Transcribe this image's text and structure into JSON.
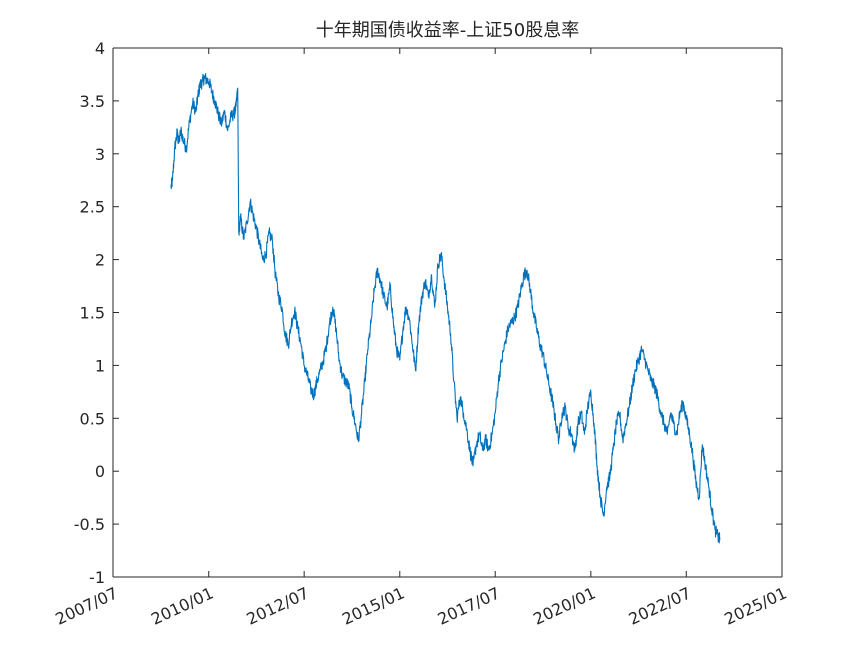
{
  "chart_data": {
    "type": "line",
    "title": "十年期国债收益率-上证50股息率",
    "xlabel": "",
    "ylabel": "",
    "xlim": [
      "2007/07",
      "2025/01"
    ],
    "ylim": [
      -1,
      4
    ],
    "x_ticks": [
      "2007/07",
      "2010/01",
      "2012/07",
      "2015/01",
      "2017/07",
      "2020/01",
      "2022/07",
      "2025/01"
    ],
    "y_ticks": [
      -1,
      -0.5,
      0,
      0.5,
      1,
      1.5,
      2,
      2.5,
      3,
      3.5,
      4
    ],
    "y_tick_labels": [
      "-1",
      "-0.5",
      "0",
      "0.5",
      "1",
      "1.5",
      "2",
      "2.5",
      "3",
      "3.5",
      "4"
    ],
    "grid": false,
    "box": true,
    "series": [
      {
        "color": "#0072BD",
        "points": [
          [
            "2009/01/05",
            2.68
          ],
          [
            "2009/01/20",
            2.75
          ],
          [
            "2009/02/10",
            3.05
          ],
          [
            "2009/03/05",
            3.2
          ],
          [
            "2009/03/20",
            3.1
          ],
          [
            "2009/04/10",
            3.22
          ],
          [
            "2009/05/05",
            3.12
          ],
          [
            "2009/06/01",
            3.05
          ],
          [
            "2009/07/01",
            3.3
          ],
          [
            "2009/08/01",
            3.48
          ],
          [
            "2009/09/01",
            3.4
          ],
          [
            "2009/09/20",
            3.55
          ],
          [
            "2009/10/10",
            3.65
          ],
          [
            "2009/11/01",
            3.68
          ],
          [
            "2009/11/20",
            3.72
          ],
          [
            "2009/12/10",
            3.7
          ],
          [
            "2010/01/05",
            3.68
          ],
          [
            "2010/02/01",
            3.58
          ],
          [
            "2010/03/01",
            3.5
          ],
          [
            "2010/04/01",
            3.38
          ],
          [
            "2010/05/01",
            3.28
          ],
          [
            "2010/06/01",
            3.4
          ],
          [
            "2010/07/01",
            3.22
          ],
          [
            "2010/08/01",
            3.35
          ],
          [
            "2010/09/01",
            3.38
          ],
          [
            "2010/09/20",
            3.45
          ],
          [
            "2010/10/05",
            3.62
          ],
          [
            "2010/10/15",
            2.25
          ],
          [
            "2010/11/01",
            2.4
          ],
          [
            "2010/12/01",
            2.2
          ],
          [
            "2011/01/01",
            2.35
          ],
          [
            "2011/02/01",
            2.55
          ],
          [
            "2011/03/01",
            2.42
          ],
          [
            "2011/04/01",
            2.3
          ],
          [
            "2011/05/01",
            2.15
          ],
          [
            "2011/06/01",
            2.0
          ],
          [
            "2011/07/01",
            2.05
          ],
          [
            "2011/08/01",
            2.25
          ],
          [
            "2011/09/01",
            2.18
          ],
          [
            "2011/10/01",
            1.85
          ],
          [
            "2011/11/01",
            1.65
          ],
          [
            "2011/12/01",
            1.55
          ],
          [
            "2012/01/01",
            1.3
          ],
          [
            "2012/02/01",
            1.2
          ],
          [
            "2012/03/01",
            1.4
          ],
          [
            "2012/04/01",
            1.52
          ],
          [
            "2012/05/01",
            1.35
          ],
          [
            "2012/06/01",
            1.2
          ],
          [
            "2012/07/01",
            1.0
          ],
          [
            "2012/08/01",
            0.9
          ],
          [
            "2012/09/01",
            0.78
          ],
          [
            "2012/10/01",
            0.72
          ],
          [
            "2012/11/01",
            0.85
          ],
          [
            "2012/12/01",
            0.95
          ],
          [
            "2013/01/01",
            1.05
          ],
          [
            "2013/02/01",
            1.2
          ],
          [
            "2013/03/01",
            1.4
          ],
          [
            "2013/04/01",
            1.55
          ],
          [
            "2013/05/01",
            1.35
          ],
          [
            "2013/06/01",
            1.05
          ],
          [
            "2013/07/01",
            0.9
          ],
          [
            "2013/08/01",
            0.85
          ],
          [
            "2013/09/01",
            0.8
          ],
          [
            "2013/10/01",
            0.6
          ],
          [
            "2013/11/01",
            0.45
          ],
          [
            "2013/12/01",
            0.28
          ],
          [
            "2014/01/01",
            0.55
          ],
          [
            "2014/02/01",
            0.85
          ],
          [
            "2014/03/01",
            1.15
          ],
          [
            "2014/04/01",
            1.4
          ],
          [
            "2014/05/01",
            1.7
          ],
          [
            "2014/06/01",
            1.9
          ],
          [
            "2014/07/01",
            1.8
          ],
          [
            "2014/08/01",
            1.65
          ],
          [
            "2014/09/01",
            1.55
          ],
          [
            "2014/10/01",
            1.75
          ],
          [
            "2014/11/01",
            1.4
          ],
          [
            "2014/12/01",
            1.15
          ],
          [
            "2015/01/01",
            1.05
          ],
          [
            "2015/02/01",
            1.35
          ],
          [
            "2015/03/01",
            1.55
          ],
          [
            "2015/04/01",
            1.45
          ],
          [
            "2015/05/01",
            1.2
          ],
          [
            "2015/06/01",
            0.95
          ],
          [
            "2015/07/01",
            1.4
          ],
          [
            "2015/08/01",
            1.65
          ],
          [
            "2015/09/01",
            1.8
          ],
          [
            "2015/10/01",
            1.65
          ],
          [
            "2015/11/01",
            1.85
          ],
          [
            "2015/12/01",
            1.55
          ],
          [
            "2016/01/01",
            1.95
          ],
          [
            "2016/02/01",
            2.05
          ],
          [
            "2016/03/01",
            1.8
          ],
          [
            "2016/04/01",
            1.55
          ],
          [
            "2016/05/01",
            1.3
          ],
          [
            "2016/06/01",
            0.85
          ],
          [
            "2016/07/01",
            0.5
          ],
          [
            "2016/08/01",
            0.7
          ],
          [
            "2016/09/01",
            0.55
          ],
          [
            "2016/10/01",
            0.4
          ],
          [
            "2016/11/01",
            0.2
          ],
          [
            "2016/12/01",
            0.05
          ],
          [
            "2017/01/01",
            0.25
          ],
          [
            "2017/02/01",
            0.35
          ],
          [
            "2017/03/01",
            0.2
          ],
          [
            "2017/04/01",
            0.3
          ],
          [
            "2017/05/01",
            0.2
          ],
          [
            "2017/06/01",
            0.35
          ],
          [
            "2017/07/01",
            0.55
          ],
          [
            "2017/08/01",
            0.85
          ],
          [
            "2017/09/01",
            1.05
          ],
          [
            "2017/10/01",
            1.2
          ],
          [
            "2017/11/01",
            1.35
          ],
          [
            "2017/12/01",
            1.4
          ],
          [
            "2018/01/01",
            1.45
          ],
          [
            "2018/02/01",
            1.55
          ],
          [
            "2018/03/01",
            1.7
          ],
          [
            "2018/04/01",
            1.85
          ],
          [
            "2018/05/01",
            1.9
          ],
          [
            "2018/06/01",
            1.72
          ],
          [
            "2018/07/01",
            1.5
          ],
          [
            "2018/08/01",
            1.35
          ],
          [
            "2018/09/01",
            1.2
          ],
          [
            "2018/10/01",
            1.1
          ],
          [
            "2018/11/01",
            0.95
          ],
          [
            "2018/12/01",
            0.8
          ],
          [
            "2019/01/01",
            0.65
          ],
          [
            "2019/02/01",
            0.45
          ],
          [
            "2019/03/01",
            0.3
          ],
          [
            "2019/04/01",
            0.55
          ],
          [
            "2019/05/01",
            0.6
          ],
          [
            "2019/06/01",
            0.4
          ],
          [
            "2019/07/01",
            0.35
          ],
          [
            "2019/08/01",
            0.2
          ],
          [
            "2019/09/01",
            0.45
          ],
          [
            "2019/10/01",
            0.55
          ],
          [
            "2019/11/01",
            0.35
          ],
          [
            "2019/12/01",
            0.6
          ],
          [
            "2020/01/01",
            0.75
          ],
          [
            "2020/02/01",
            0.45
          ],
          [
            "2020/03/01",
            0.05
          ],
          [
            "2020/04/01",
            -0.25
          ],
          [
            "2020/05/01",
            -0.42
          ],
          [
            "2020/06/01",
            -0.15
          ],
          [
            "2020/07/01",
            -0.05
          ],
          [
            "2020/08/01",
            0.2
          ],
          [
            "2020/09/01",
            0.45
          ],
          [
            "2020/10/01",
            0.55
          ],
          [
            "2020/11/01",
            0.3
          ],
          [
            "2020/12/01",
            0.45
          ],
          [
            "2021/01/01",
            0.6
          ],
          [
            "2021/02/01",
            0.8
          ],
          [
            "2021/03/01",
            0.95
          ],
          [
            "2021/04/01",
            1.05
          ],
          [
            "2021/05/01",
            1.15
          ],
          [
            "2021/06/01",
            1.05
          ],
          [
            "2021/07/01",
            0.95
          ],
          [
            "2021/08/01",
            0.85
          ],
          [
            "2021/09/01",
            0.8
          ],
          [
            "2021/10/01",
            0.7
          ],
          [
            "2021/11/01",
            0.55
          ],
          [
            "2021/12/01",
            0.45
          ],
          [
            "2022/01/01",
            0.35
          ],
          [
            "2022/02/01",
            0.55
          ],
          [
            "2022/03/01",
            0.45
          ],
          [
            "2022/04/01",
            0.35
          ],
          [
            "2022/05/01",
            0.55
          ],
          [
            "2022/06/01",
            0.65
          ],
          [
            "2022/07/01",
            0.5
          ],
          [
            "2022/08/01",
            0.35
          ],
          [
            "2022/09/01",
            0.15
          ],
          [
            "2022/10/01",
            -0.1
          ],
          [
            "2022/11/01",
            -0.25
          ],
          [
            "2022/12/01",
            0.25
          ],
          [
            "2023/01/01",
            0.05
          ],
          [
            "2023/02/01",
            -0.15
          ],
          [
            "2023/03/01",
            -0.35
          ],
          [
            "2023/04/01",
            -0.55
          ],
          [
            "2023/05/01",
            -0.62
          ],
          [
            "2023/05/20",
            -0.65
          ]
        ]
      }
    ]
  }
}
